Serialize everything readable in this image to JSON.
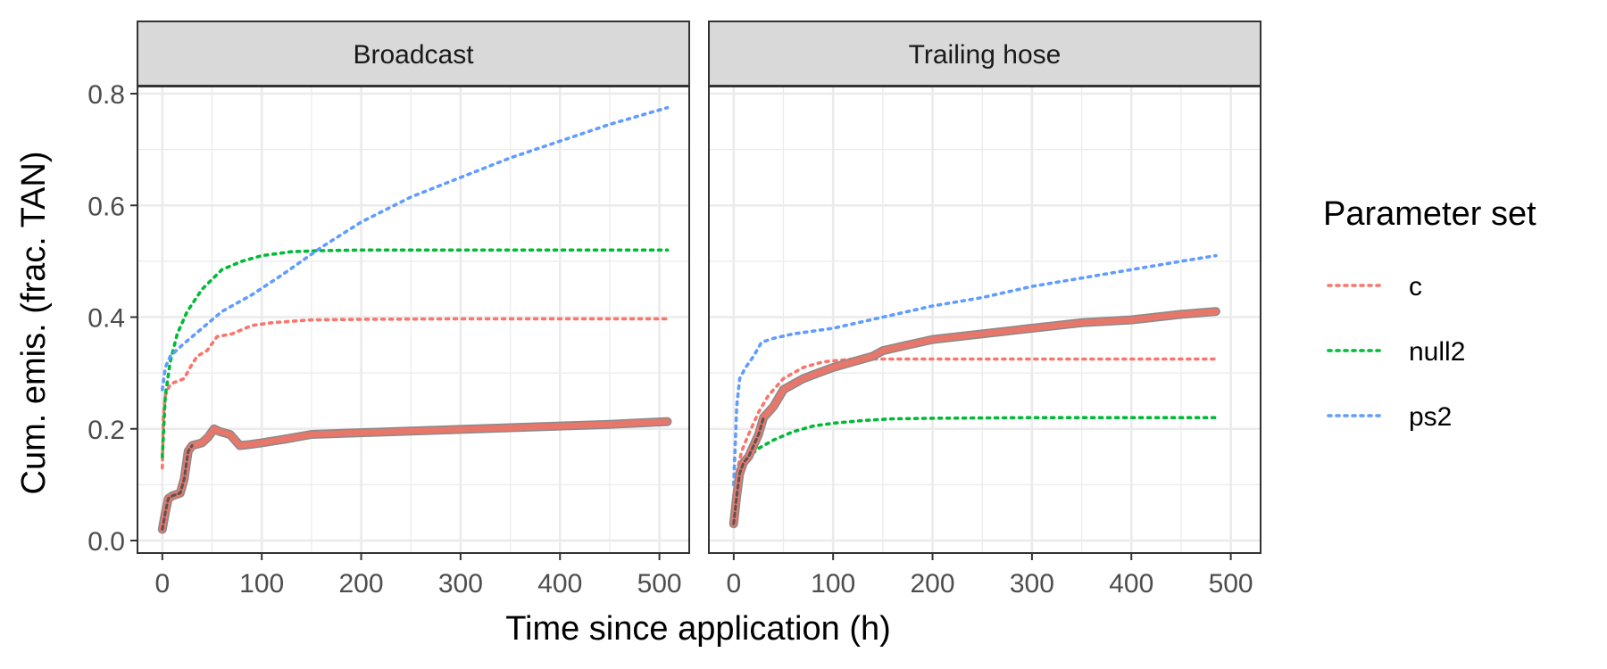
{
  "chart_data": {
    "type": "line",
    "xlabel": "Time since application (h)",
    "ylabel": "Cum. emis. (frac. TAN)",
    "xlim": [
      -25,
      530
    ],
    "ylim": [
      -0.02,
      0.8
    ],
    "x_ticks": [
      0,
      100,
      200,
      300,
      400,
      500
    ],
    "y_ticks": [
      "0.0",
      "0.2",
      "0.4",
      "0.6",
      "0.8"
    ],
    "y_tick_values": [
      0,
      0.2,
      0.4,
      0.6,
      0.8
    ],
    "grid": true,
    "legend": {
      "title": "Parameter set",
      "position": "right",
      "entries": [
        {
          "name": "c",
          "color": "#F8766D"
        },
        {
          "name": "null2",
          "color": "#00BA38"
        },
        {
          "name": "ps2",
          "color": "#619CFF"
        }
      ]
    },
    "panels": [
      {
        "title": "Broadcast",
        "observed": {
          "color": "#E8776B",
          "points": [
            [
              0,
              0.02
            ],
            [
              3,
              0.05
            ],
            [
              6,
              0.075
            ],
            [
              10,
              0.08
            ],
            [
              18,
              0.085
            ],
            [
              22,
              0.11
            ],
            [
              26,
              0.16
            ],
            [
              30,
              0.17
            ],
            [
              40,
              0.175
            ],
            [
              46,
              0.185
            ],
            [
              52,
              0.2
            ],
            [
              58,
              0.195
            ],
            [
              68,
              0.19
            ],
            [
              78,
              0.17
            ],
            [
              88,
              0.172
            ],
            [
              100,
              0.175
            ],
            [
              125,
              0.182
            ],
            [
              150,
              0.19
            ],
            [
              200,
              0.193
            ],
            [
              250,
              0.196
            ],
            [
              300,
              0.199
            ],
            [
              350,
              0.202
            ],
            [
              400,
              0.205
            ],
            [
              450,
              0.208
            ],
            [
              508,
              0.213
            ]
          ]
        },
        "series": [
          {
            "name": "c",
            "color": "#F8766D",
            "points": [
              [
                0,
                0.13
              ],
              [
                1,
                0.22
              ],
              [
                3,
                0.26
              ],
              [
                8,
                0.28
              ],
              [
                15,
                0.285
              ],
              [
                22,
                0.29
              ],
              [
                28,
                0.31
              ],
              [
                35,
                0.33
              ],
              [
                45,
                0.34
              ],
              [
                55,
                0.365
              ],
              [
                70,
                0.37
              ],
              [
                90,
                0.385
              ],
              [
                110,
                0.39
              ],
              [
                150,
                0.395
              ],
              [
                200,
                0.396
              ],
              [
                300,
                0.397
              ],
              [
                400,
                0.397
              ],
              [
                508,
                0.397
              ]
            ]
          },
          {
            "name": "null2",
            "color": "#00BA38",
            "points": [
              [
                0,
                0.15
              ],
              [
                3,
                0.26
              ],
              [
                8,
                0.32
              ],
              [
                15,
                0.37
              ],
              [
                25,
                0.41
              ],
              [
                40,
                0.45
              ],
              [
                60,
                0.485
              ],
              [
                80,
                0.5
              ],
              [
                100,
                0.51
              ],
              [
                130,
                0.517
              ],
              [
                160,
                0.519
              ],
              [
                200,
                0.52
              ],
              [
                300,
                0.52
              ],
              [
                400,
                0.52
              ],
              [
                508,
                0.52
              ]
            ]
          },
          {
            "name": "ps2",
            "color": "#619CFF",
            "points": [
              [
                0,
                0.27
              ],
              [
                3,
                0.31
              ],
              [
                8,
                0.33
              ],
              [
                20,
                0.35
              ],
              [
                40,
                0.38
              ],
              [
                60,
                0.41
              ],
              [
                90,
                0.44
              ],
              [
                120,
                0.475
              ],
              [
                160,
                0.525
              ],
              [
                200,
                0.57
              ],
              [
                250,
                0.615
              ],
              [
                300,
                0.65
              ],
              [
                350,
                0.685
              ],
              [
                400,
                0.715
              ],
              [
                450,
                0.745
              ],
              [
                508,
                0.775
              ]
            ]
          }
        ]
      },
      {
        "title": "Trailing hose",
        "observed": {
          "color": "#E8776B",
          "points": [
            [
              0,
              0.03
            ],
            [
              3,
              0.08
            ],
            [
              6,
              0.12
            ],
            [
              10,
              0.14
            ],
            [
              15,
              0.15
            ],
            [
              20,
              0.17
            ],
            [
              25,
              0.19
            ],
            [
              30,
              0.22
            ],
            [
              40,
              0.24
            ],
            [
              50,
              0.27
            ],
            [
              60,
              0.28
            ],
            [
              70,
              0.29
            ],
            [
              85,
              0.3
            ],
            [
              100,
              0.31
            ],
            [
              120,
              0.32
            ],
            [
              140,
              0.33
            ],
            [
              150,
              0.34
            ],
            [
              175,
              0.35
            ],
            [
              200,
              0.36
            ],
            [
              250,
              0.37
            ],
            [
              300,
              0.38
            ],
            [
              350,
              0.39
            ],
            [
              400,
              0.395
            ],
            [
              450,
              0.405
            ],
            [
              485,
              0.41
            ]
          ]
        },
        "series": [
          {
            "name": "c",
            "color": "#F8766D",
            "points": [
              [
                0,
                0.05
              ],
              [
                3,
                0.12
              ],
              [
                8,
                0.16
              ],
              [
                15,
                0.19
              ],
              [
                25,
                0.23
              ],
              [
                35,
                0.26
              ],
              [
                50,
                0.29
              ],
              [
                70,
                0.31
              ],
              [
                90,
                0.32
              ],
              [
                120,
                0.325
              ],
              [
                200,
                0.325
              ],
              [
                300,
                0.325
              ],
              [
                400,
                0.325
              ],
              [
                485,
                0.325
              ]
            ]
          },
          {
            "name": "null2",
            "color": "#00BA38",
            "points": [
              [
                0,
                0.05
              ],
              [
                3,
                0.1
              ],
              [
                8,
                0.13
              ],
              [
                15,
                0.15
              ],
              [
                25,
                0.165
              ],
              [
                40,
                0.18
              ],
              [
                60,
                0.195
              ],
              [
                80,
                0.205
              ],
              [
                100,
                0.21
              ],
              [
                130,
                0.215
              ],
              [
                160,
                0.218
              ],
              [
                200,
                0.219
              ],
              [
                300,
                0.22
              ],
              [
                400,
                0.22
              ],
              [
                485,
                0.22
              ]
            ]
          },
          {
            "name": "ps2",
            "color": "#619CFF",
            "points": [
              [
                0,
                0.1
              ],
              [
                3,
                0.24
              ],
              [
                6,
                0.29
              ],
              [
                12,
                0.31
              ],
              [
                20,
                0.33
              ],
              [
                28,
                0.355
              ],
              [
                40,
                0.362
              ],
              [
                60,
                0.37
              ],
              [
                100,
                0.38
              ],
              [
                150,
                0.4
              ],
              [
                200,
                0.42
              ],
              [
                250,
                0.435
              ],
              [
                300,
                0.455
              ],
              [
                350,
                0.47
              ],
              [
                400,
                0.485
              ],
              [
                450,
                0.5
              ],
              [
                485,
                0.51
              ]
            ]
          }
        ]
      }
    ]
  }
}
